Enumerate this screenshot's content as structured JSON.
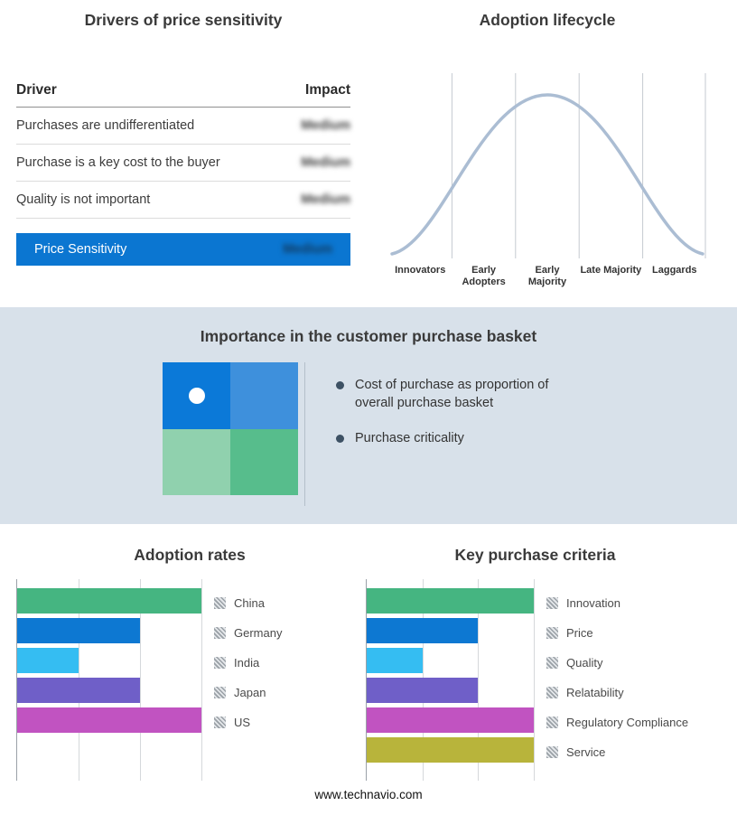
{
  "page": {
    "footer": "www.technavio.com"
  },
  "drivers": {
    "title": "Drivers of price sensitivity",
    "columns": {
      "driver": "Driver",
      "impact": "Impact"
    },
    "rows": [
      {
        "driver": "Purchases are undifferentiated",
        "impact": "Medium"
      },
      {
        "driver": "Purchase is a key cost to the buyer",
        "impact": "Medium"
      },
      {
        "driver": "Quality is not important",
        "impact": "Medium"
      }
    ],
    "summary": {
      "label": "Price Sensitivity",
      "impact": "Medium"
    },
    "highlight_color": "#0b76d1"
  },
  "lifecycle": {
    "title": "Adoption lifecycle",
    "stages": [
      "Innovators",
      "Early Adopters",
      "Early Majority",
      "Late Majority",
      "Laggards"
    ],
    "curve_color": "#abbdd3"
  },
  "basket": {
    "title": "Importance in the customer purchase basket",
    "bullets": [
      "Cost of purchase as proportion of overall purchase basket",
      "Purchase criticality"
    ],
    "background": "#d8e1ea",
    "matrix_colors": {
      "top_left": "#0b79d8",
      "top_right": "#3e90dc",
      "bottom_left": "#90d1ae",
      "bottom_right": "#57bd8c"
    }
  },
  "chart_data": [
    {
      "type": "bar",
      "orientation": "horizontal",
      "title": "Adoption rates",
      "categories": [
        "China",
        "Germany",
        "India",
        "Japan",
        "US"
      ],
      "values": [
        3,
        2,
        1,
        2,
        3
      ],
      "colors": [
        "#45b581",
        "#0d78d2",
        "#35bdf2",
        "#6f5fc8",
        "#c153c1"
      ],
      "xlim": [
        0,
        3
      ],
      "gridlines": [
        1,
        2,
        3
      ],
      "legend_position": "right"
    },
    {
      "type": "bar",
      "orientation": "horizontal",
      "title": "Key purchase criteria",
      "categories": [
        "Innovation",
        "Price",
        "Quality",
        "Relatability",
        "Regulatory Compliance",
        "Service"
      ],
      "values": [
        3,
        2,
        1,
        2,
        3,
        3
      ],
      "colors": [
        "#45b581",
        "#0d78d2",
        "#35bdf2",
        "#6f5fc8",
        "#c153c1",
        "#b8b43b"
      ],
      "xlim": [
        0,
        3
      ],
      "gridlines": [
        1,
        2,
        3
      ],
      "legend_position": "right"
    }
  ]
}
